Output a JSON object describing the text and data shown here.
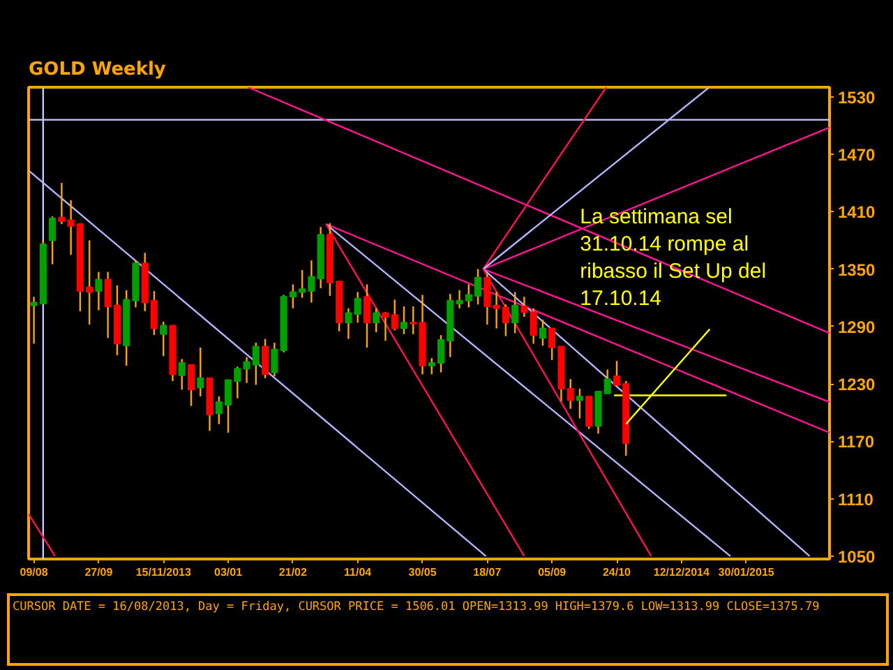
{
  "chart_data": {
    "type": "candlestick",
    "title": "GOLD Weekly",
    "xlim": [
      "2013-08-05",
      "2015-04-03"
    ],
    "ylim": [
      1047,
      1540
    ],
    "xticks": [
      {
        "value": "2013-08-09",
        "label": "09/08"
      },
      {
        "value": "2013-09-27",
        "label": "27/09"
      },
      {
        "value": "2013-11-15",
        "label": "15/11/2013"
      },
      {
        "value": "2014-01-03",
        "label": "03/01"
      },
      {
        "value": "2014-02-21",
        "label": "21/02"
      },
      {
        "value": "2014-04-11",
        "label": "11/04"
      },
      {
        "value": "2014-05-30",
        "label": "30/05"
      },
      {
        "value": "2014-07-18",
        "label": "18/07"
      },
      {
        "value": "2014-09-05",
        "label": "05/09"
      },
      {
        "value": "2014-10-24",
        "label": "24/10"
      },
      {
        "value": "2014-12-12",
        "label": "12/12/2014"
      },
      {
        "value": "2015-01-30",
        "label": "30/01/2015"
      }
    ],
    "yticks": [
      1050,
      1110,
      1170,
      1230,
      1290,
      1350,
      1410,
      1470,
      1530
    ],
    "series": [
      {
        "color": "#ffa500",
        "x": [
          "2013-08-09",
          "2013-08-16",
          "2013-08-23",
          "2013-08-30",
          "2013-09-06",
          "2013-09-13",
          "2013-09-20",
          "2013-09-27",
          "2013-10-04",
          "2013-10-11",
          "2013-10-18",
          "2013-10-25",
          "2013-11-01",
          "2013-11-08",
          "2013-11-15",
          "2013-11-22",
          "2013-11-29",
          "2013-12-06",
          "2013-12-13",
          "2013-12-20",
          "2013-12-27",
          "2014-01-03",
          "2014-01-10",
          "2014-01-17",
          "2014-01-24",
          "2014-01-31",
          "2014-02-07",
          "2014-02-14",
          "2014-02-21",
          "2014-02-28",
          "2014-03-07",
          "2014-03-14",
          "2014-03-21",
          "2014-03-28",
          "2014-04-04",
          "2014-04-11",
          "2014-04-18",
          "2014-04-25",
          "2014-05-02",
          "2014-05-09",
          "2014-05-16",
          "2014-05-23",
          "2014-05-30",
          "2014-06-06",
          "2014-06-13",
          "2014-06-20",
          "2014-06-27",
          "2014-07-04",
          "2014-07-11",
          "2014-07-18",
          "2014-07-25",
          "2014-08-01",
          "2014-08-08",
          "2014-08-15",
          "2014-08-22",
          "2014-08-29",
          "2014-09-05",
          "2014-09-12",
          "2014-09-19",
          "2014-09-26",
          "2014-10-03",
          "2014-10-10",
          "2014-10-17",
          "2014-10-24",
          "2014-10-31"
        ],
        "ohlc": [
          [
            1312,
            1321,
            1272,
            1315
          ],
          [
            1314,
            1380,
            1314,
            1376
          ],
          [
            1380,
            1405,
            1355,
            1403
          ],
          [
            1404,
            1440,
            1397,
            1400
          ],
          [
            1401,
            1422,
            1365,
            1395
          ],
          [
            1397,
            1398,
            1306,
            1327
          ],
          [
            1331,
            1380,
            1292,
            1326
          ],
          [
            1327,
            1347,
            1307,
            1339
          ],
          [
            1339,
            1347,
            1278,
            1311
          ],
          [
            1312,
            1333,
            1260,
            1272
          ],
          [
            1270,
            1328,
            1249,
            1318
          ],
          [
            1317,
            1359,
            1310,
            1356
          ],
          [
            1356,
            1367,
            1306,
            1315
          ],
          [
            1317,
            1327,
            1281,
            1288
          ],
          [
            1282,
            1295,
            1259,
            1291
          ],
          [
            1291,
            1291,
            1233,
            1240
          ],
          [
            1239,
            1256,
            1224,
            1252
          ],
          [
            1250,
            1250,
            1207,
            1224
          ],
          [
            1226,
            1268,
            1217,
            1236
          ],
          [
            1236,
            1236,
            1181,
            1198
          ],
          [
            1199,
            1217,
            1188,
            1211
          ],
          [
            1208,
            1234,
            1179,
            1234
          ],
          [
            1233,
            1248,
            1215,
            1246
          ],
          [
            1246,
            1258,
            1231,
            1253
          ],
          [
            1250,
            1273,
            1229,
            1269
          ],
          [
            1269,
            1277,
            1236,
            1240
          ],
          [
            1242,
            1273,
            1238,
            1266
          ],
          [
            1265,
            1323,
            1263,
            1321
          ],
          [
            1321,
            1334,
            1309,
            1326
          ],
          [
            1326,
            1349,
            1320,
            1329
          ],
          [
            1327,
            1359,
            1315,
            1342
          ],
          [
            1340,
            1394,
            1330,
            1386
          ],
          [
            1386,
            1398,
            1322,
            1336
          ],
          [
            1337,
            1337,
            1285,
            1294
          ],
          [
            1294,
            1309,
            1277,
            1304
          ],
          [
            1303,
            1326,
            1294,
            1319
          ],
          [
            1321,
            1334,
            1268,
            1294
          ],
          [
            1294,
            1309,
            1284,
            1304
          ],
          [
            1304,
            1305,
            1275,
            1300
          ],
          [
            1302,
            1318,
            1286,
            1288
          ],
          [
            1288,
            1311,
            1282,
            1294
          ],
          [
            1294,
            1311,
            1282,
            1293
          ],
          [
            1294,
            1323,
            1240,
            1249
          ],
          [
            1249,
            1257,
            1240,
            1252
          ],
          [
            1252,
            1281,
            1242,
            1276
          ],
          [
            1275,
            1324,
            1258,
            1317
          ],
          [
            1314,
            1328,
            1309,
            1317
          ],
          [
            1317,
            1334,
            1310,
            1323
          ],
          [
            1322,
            1350,
            1313,
            1341
          ],
          [
            1341,
            1345,
            1292,
            1311
          ],
          [
            1312,
            1326,
            1288,
            1309
          ],
          [
            1310,
            1313,
            1280,
            1294
          ],
          [
            1294,
            1326,
            1283,
            1312
          ],
          [
            1311,
            1321,
            1300,
            1305
          ],
          [
            1305,
            1309,
            1272,
            1281
          ],
          [
            1278,
            1297,
            1270,
            1288
          ],
          [
            1288,
            1288,
            1255,
            1268
          ],
          [
            1269,
            1269,
            1212,
            1225
          ],
          [
            1225,
            1235,
            1204,
            1213
          ],
          [
            1213,
            1225,
            1194,
            1217
          ],
          [
            1217,
            1217,
            1183,
            1186
          ],
          [
            1186,
            1222,
            1178,
            1222
          ],
          [
            1220,
            1245,
            1220,
            1235
          ],
          [
            1238,
            1254,
            1228,
            1229
          ],
          [
            1230,
            1233,
            1155,
            1168
          ]
        ],
        "colors": [
          "#00a000",
          "#00a000",
          "#00a000",
          "#ff0000",
          "#ff0000",
          "#ff0000",
          "#ff0000",
          "#00a000",
          "#ff0000",
          "#ff0000",
          "#00a000",
          "#00a000",
          "#ff0000",
          "#ff0000",
          "#00a000",
          "#ff0000",
          "#00a000",
          "#ff0000",
          "#00a000",
          "#ff0000",
          "#00a000",
          "#00a000",
          "#00a000",
          "#00a000",
          "#00a000",
          "#ff0000",
          "#00a000",
          "#00a000",
          "#00a000",
          "#00a000",
          "#00a000",
          "#00a000",
          "#ff0000",
          "#ff0000",
          "#00a000",
          "#00a000",
          "#ff0000",
          "#00a000",
          "#ff0000",
          "#ff0000",
          "#00a000",
          "#ff0000",
          "#ff0000",
          "#00a000",
          "#00a000",
          "#00a000",
          "#00a000",
          "#00a000",
          "#00a000",
          "#ff0000",
          "#ff0000",
          "#ff0000",
          "#00a000",
          "#ff0000",
          "#ff0000",
          "#00a000",
          "#ff0000",
          "#ff0000",
          "#ff0000",
          "#00a000",
          "#ff0000",
          "#00a000",
          "#00a000",
          "#ff0000",
          "#ff0000"
        ]
      },
      {
        "type": "line",
        "color": "#b4b4ff",
        "x": [
          "2013-08-05",
          "2014-07-17"
        ],
        "values": [
          1453,
          1050
        ]
      },
      {
        "type": "line",
        "color": "#ff1493",
        "x": [
          "2014-03-18",
          "2015-04-03"
        ],
        "values": [
          1397,
          1179
        ]
      },
      {
        "type": "line",
        "color": "#b4b4ff",
        "x": [
          "2014-03-18",
          "2015-01-18"
        ],
        "values": [
          1397,
          1050
        ]
      },
      {
        "type": "line",
        "color": "#ff1050",
        "x": [
          "2014-03-18",
          "2014-08-15"
        ],
        "values": [
          1397,
          1050
        ]
      },
      {
        "type": "line",
        "color": "#ff1493",
        "x": [
          "2014-01-18",
          "2015-04-03"
        ],
        "values": [
          1540,
          1283
        ]
      },
      {
        "type": "line",
        "color": "#ff1493",
        "x": [
          "2014-07-15",
          "2015-04-03"
        ],
        "values": [
          1350,
          1498
        ]
      },
      {
        "type": "line",
        "color": "#ff1493",
        "x": [
          "2014-07-15",
          "2015-04-03"
        ],
        "values": [
          1350,
          1211
        ]
      },
      {
        "type": "line",
        "color": "#ff1050",
        "x": [
          "2014-07-15",
          "2014-10-16"
        ],
        "values": [
          1350,
          1540
        ]
      },
      {
        "type": "line",
        "color": "#b4b4ff",
        "x": [
          "2014-07-15",
          "2015-01-02"
        ],
        "values": [
          1350,
          1540
        ]
      },
      {
        "type": "line",
        "color": "#b4b4ff",
        "x": [
          "2014-07-15",
          "2015-03-19"
        ],
        "values": [
          1350,
          1050
        ]
      },
      {
        "type": "line",
        "color": "#ff1050",
        "x": [
          "2014-07-15",
          "2014-11-19"
        ],
        "values": [
          1350,
          1050
        ]
      },
      {
        "type": "line",
        "color": "#ff1050",
        "x": [
          "2013-08-05",
          "2013-08-25"
        ],
        "values": [
          1094,
          1050
        ]
      },
      {
        "type": "line",
        "color": "#ffff00",
        "x": [
          "2014-10-22",
          "2015-01-15"
        ],
        "values": [
          1218,
          1218
        ]
      }
    ],
    "ref_lines": [
      {
        "axis": "x",
        "value": "2013-08-16",
        "color": "#c8c8ff"
      },
      {
        "axis": "y",
        "value": 1506,
        "color": "#c8c8ff"
      }
    ],
    "annotations": [
      {
        "text": "La settimana sel 31.10.14 rompe al ribasso il Set Up del 17.10.14",
        "x": "2014-10-31",
        "y": 1188
      },
      "CURSOR DATE = 16/08/2013, Day = Friday, CURSOR PRICE = 1506.01 OPEN=1313.99 HIGH=1379.6 LOW=1313.99 CLOSE=1375.79"
    ]
  }
}
